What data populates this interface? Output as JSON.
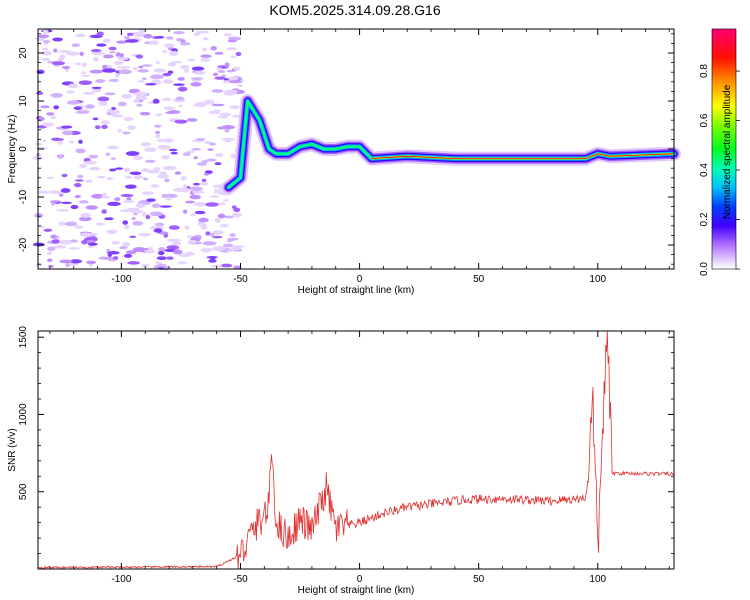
{
  "title": "KOM5.2025.314.09.28.G16",
  "chart_data": [
    {
      "type": "heatmap",
      "xlabel": "Height of straight line (km)",
      "ylabel": "Frequency (Hz)",
      "xlim": [
        -135,
        132
      ],
      "ylim": [
        -25,
        25
      ],
      "xticks": [
        -100,
        -50,
        0,
        50,
        100
      ],
      "yticks": [
        -20,
        -10,
        0,
        10,
        20
      ],
      "colorbar": {
        "label": "Normalized spectral amplitude",
        "range": [
          0,
          0.97
        ],
        "ticks": [
          0.0,
          0.2,
          0.4,
          0.6,
          0.8
        ]
      },
      "ridge": [
        {
          "x": -55,
          "y": -8
        },
        {
          "x": -50,
          "y": -6
        },
        {
          "x": -47,
          "y": 10
        },
        {
          "x": -42,
          "y": 6
        },
        {
          "x": -38,
          "y": 0
        },
        {
          "x": -35,
          "y": -1
        },
        {
          "x": -30,
          "y": -1
        },
        {
          "x": -25,
          "y": 0.5
        },
        {
          "x": -20,
          "y": 1
        },
        {
          "x": -15,
          "y": 0
        },
        {
          "x": -10,
          "y": 0
        },
        {
          "x": -5,
          "y": 0.5
        },
        {
          "x": 0,
          "y": 0.5
        },
        {
          "x": 5,
          "y": -2
        },
        {
          "x": 20,
          "y": -1.5
        },
        {
          "x": 40,
          "y": -2
        },
        {
          "x": 60,
          "y": -2
        },
        {
          "x": 80,
          "y": -2
        },
        {
          "x": 95,
          "y": -2
        },
        {
          "x": 100,
          "y": -1
        },
        {
          "x": 105,
          "y": -1.5
        },
        {
          "x": 132,
          "y": -1
        }
      ]
    },
    {
      "type": "line",
      "xlabel": "Height of straight line (km)",
      "ylabel": "SNR (v/v)",
      "xlim": [
        -135,
        132
      ],
      "ylim": [
        0,
        1540
      ],
      "xticks": [
        -100,
        -50,
        0,
        50,
        100
      ],
      "yticks": [
        500,
        1000,
        1500
      ],
      "series": [
        {
          "color": "#e03030",
          "points": [
            {
              "x": -135,
              "y": 10
            },
            {
              "x": -60,
              "y": 15
            },
            {
              "x": -50,
              "y": 90
            },
            {
              "x": -45,
              "y": 240
            },
            {
              "x": -38,
              "y": 400
            },
            {
              "x": -37,
              "y": 800
            },
            {
              "x": -35,
              "y": 300
            },
            {
              "x": -30,
              "y": 200
            },
            {
              "x": -25,
              "y": 320
            },
            {
              "x": -20,
              "y": 250
            },
            {
              "x": -14,
              "y": 520
            },
            {
              "x": -10,
              "y": 260
            },
            {
              "x": 0,
              "y": 300
            },
            {
              "x": 10,
              "y": 360
            },
            {
              "x": 20,
              "y": 400
            },
            {
              "x": 30,
              "y": 420
            },
            {
              "x": 45,
              "y": 450
            },
            {
              "x": 60,
              "y": 455
            },
            {
              "x": 80,
              "y": 440
            },
            {
              "x": 95,
              "y": 460
            },
            {
              "x": 98,
              "y": 1080
            },
            {
              "x": 100,
              "y": 100
            },
            {
              "x": 102,
              "y": 900
            },
            {
              "x": 104,
              "y": 1540
            },
            {
              "x": 106,
              "y": 620
            },
            {
              "x": 132,
              "y": 615
            }
          ]
        }
      ]
    }
  ]
}
